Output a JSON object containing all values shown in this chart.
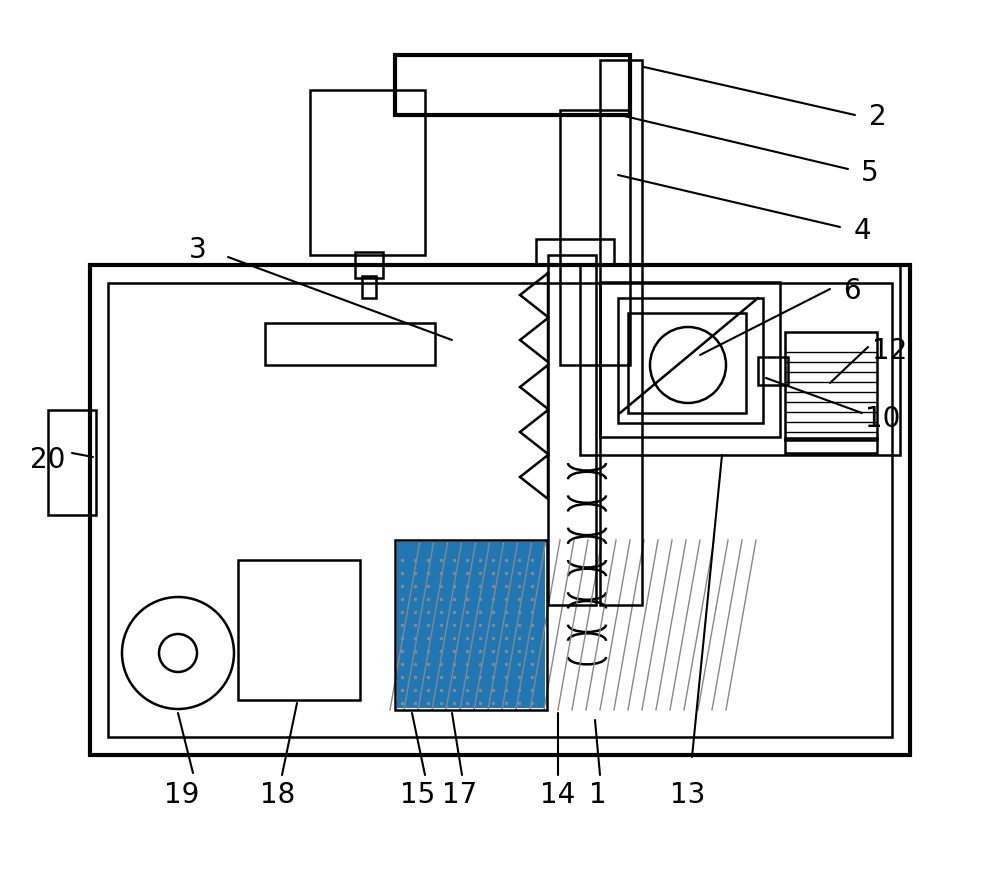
{
  "bg": "#ffffff",
  "lc": "#000000",
  "lw": 1.8,
  "tlw": 3.0,
  "fs": 20,
  "fig_w": 10.0,
  "fig_h": 8.75,
  "dpi": 100
}
